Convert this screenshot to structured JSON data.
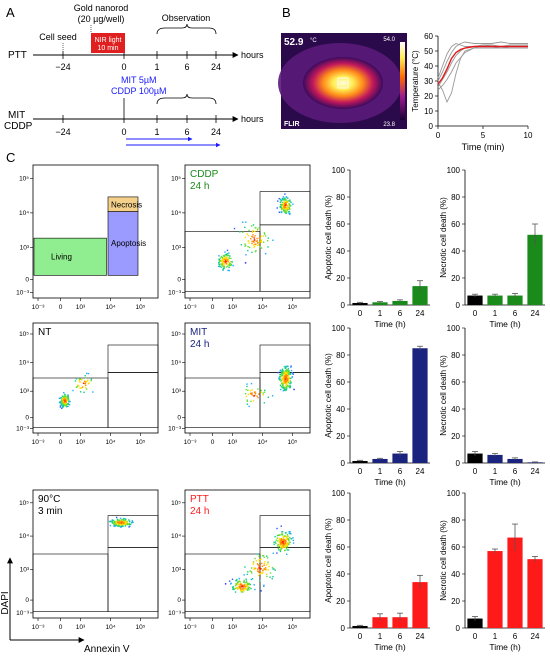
{
  "panel_labels": {
    "a": "A",
    "b": "B",
    "c": "C"
  },
  "timeline": {
    "gold_line1": "Gold nanorod",
    "gold_line2": "(20 µg/well)",
    "cell_seed": "Cell seed",
    "observation": "Observation",
    "ptt_label": "PTT",
    "nir_line1": "NIR light",
    "nir_line2": "10 min",
    "hours": "hours",
    "ticks": [
      "−24",
      "0",
      "1",
      "6",
      "24"
    ],
    "mit_dose": "MIT 5µM",
    "cddp_dose": "CDDP 100µM",
    "mit_label": "MIT",
    "cddp_label": "CDDP"
  },
  "thermal": {
    "temp_readout": "52.9",
    "unit": "°C",
    "scale_max": "54.0",
    "scale_min": "23.8",
    "brand": "FLIR",
    "colors": {
      "hot": "#ffff66",
      "mid": "#ff6a00",
      "cool": "#7b1fa2",
      "cold": "#1a0033"
    }
  },
  "chart_data": [
    {
      "type": "line",
      "title": "",
      "xlabel": "Time (min)",
      "ylabel": "Temperature (°C)",
      "xlim": [
        0,
        10
      ],
      "ylim": [
        0,
        60
      ],
      "xticks": [
        "0",
        "5",
        "10"
      ],
      "yticks": [
        "0",
        "10",
        "20",
        "30",
        "40",
        "50",
        "60"
      ],
      "series": [
        {
          "color": "#e41a1c",
          "x": [
            0,
            0.5,
            1,
            1.5,
            2,
            2.5,
            3,
            3.5,
            4,
            5,
            6,
            7,
            8,
            9,
            10
          ],
          "y": [
            28,
            32,
            38,
            45,
            49,
            51,
            52,
            52.5,
            53,
            53,
            53,
            53,
            53,
            53,
            53
          ]
        },
        {
          "color": "#999999",
          "x": [
            0,
            0.5,
            1,
            1.5,
            2,
            2.5,
            3,
            4,
            5,
            6,
            7,
            8,
            9,
            10
          ],
          "y": [
            26,
            31,
            36,
            42,
            47,
            50,
            52,
            53,
            53,
            53,
            52,
            53,
            53,
            53
          ]
        },
        {
          "color": "#999999",
          "x": [
            0,
            0.5,
            1,
            1.5,
            2,
            2.5,
            3,
            4,
            5,
            6,
            7,
            8,
            9,
            10
          ],
          "y": [
            30,
            36,
            43,
            49,
            53,
            55,
            56,
            55,
            55,
            55,
            56,
            55,
            55,
            55
          ]
        },
        {
          "color": "#999999",
          "x": [
            0,
            0.5,
            1,
            1.5,
            2,
            3,
            4,
            5,
            6,
            7,
            8,
            9,
            10
          ],
          "y": [
            24,
            27,
            31,
            36,
            42,
            49,
            52,
            54,
            54,
            53,
            54,
            54,
            54
          ]
        },
        {
          "color": "#999999",
          "x": [
            0,
            0.5,
            1,
            1.5,
            2,
            2.5,
            3,
            4,
            5,
            6,
            7,
            8,
            9,
            10
          ],
          "y": [
            32,
            40,
            48,
            53,
            55,
            54,
            53,
            53,
            54,
            53,
            53,
            53,
            53,
            53
          ]
        },
        {
          "color": "#999999",
          "x": [
            0,
            0.5,
            1,
            1.5,
            2,
            2.5,
            3,
            4,
            5,
            6,
            7,
            8,
            9,
            10
          ],
          "y": [
            29,
            24,
            16,
            22,
            35,
            45,
            50,
            52,
            52,
            52,
            52,
            52,
            52,
            52
          ]
        }
      ]
    },
    {
      "type": "scatter",
      "cell_label": [
        "",
        ""
      ],
      "gates": [
        "Living",
        "Apoptosis",
        "Necrosis"
      ],
      "xticks": [
        "10⁻³",
        "0",
        "10³",
        "10⁴",
        "10⁵"
      ],
      "yticks": [
        "10⁻³",
        "0",
        "10³",
        "10⁴",
        "10⁵"
      ]
    },
    {
      "type": "scatter",
      "cell_label": [
        "CDDP",
        "24 h"
      ],
      "label_color": "#1a8a1a",
      "xticks": [
        "10⁻³",
        "0",
        "10³",
        "10⁴",
        "10⁵"
      ],
      "yticks": [
        "10⁻³",
        "0",
        "10³",
        "10⁴",
        "10⁵"
      ]
    },
    {
      "type": "bar",
      "categories": [
        "0",
        "1",
        "6",
        "24"
      ],
      "values": [
        1.5,
        2,
        3,
        14
      ],
      "errors": [
        0.5,
        0.5,
        0.8,
        4
      ],
      "ylim": [
        0,
        100
      ],
      "yticks": [
        "0",
        "20",
        "40",
        "60",
        "80",
        "100"
      ],
      "ylabel": "Apoptotic cell death (%)",
      "xlabel": "Time (h)",
      "color": "#1a8a1a"
    },
    {
      "type": "bar",
      "categories": [
        "0",
        "1",
        "6",
        "24"
      ],
      "values": [
        7,
        7,
        7,
        52
      ],
      "errors": [
        1,
        1,
        1.5,
        8
      ],
      "ylim": [
        0,
        100
      ],
      "yticks": [
        "0",
        "20",
        "40",
        "60",
        "80",
        "100"
      ],
      "ylabel": "Necrotic cell death (%)",
      "xlabel": "Time (h)",
      "color": "#1a8a1a"
    },
    {
      "type": "scatter",
      "cell_label": [
        "NT",
        ""
      ],
      "label_color": "#000000",
      "xticks": [
        "10⁻³",
        "0",
        "10³",
        "10⁴",
        "10⁵"
      ],
      "yticks": [
        "10⁻³",
        "0",
        "10³",
        "10⁴",
        "10⁵"
      ]
    },
    {
      "type": "scatter",
      "cell_label": [
        "MIT",
        "24 h"
      ],
      "label_color": "#1a237e",
      "xticks": [
        "10⁻³",
        "0",
        "10³",
        "10⁴",
        "10⁵"
      ],
      "yticks": [
        "10⁻³",
        "0",
        "10³",
        "10⁴",
        "10⁵"
      ]
    },
    {
      "type": "bar",
      "categories": [
        "0",
        "1",
        "6",
        "24"
      ],
      "values": [
        1.5,
        3,
        7,
        85
      ],
      "errors": [
        0.5,
        0.5,
        1.5,
        1.5
      ],
      "ylim": [
        0,
        100
      ],
      "yticks": [
        "0",
        "20",
        "40",
        "60",
        "80",
        "100"
      ],
      "ylabel": "Apoptotic cell death (%)",
      "xlabel": "Time (h)",
      "color": "#1a237e"
    },
    {
      "type": "bar",
      "categories": [
        "0",
        "1",
        "6",
        "24"
      ],
      "values": [
        7,
        6,
        3,
        0.5
      ],
      "errors": [
        1.5,
        1,
        0.8,
        0.3
      ],
      "ylim": [
        0,
        100
      ],
      "yticks": [
        "0",
        "20",
        "40",
        "60",
        "80",
        "100"
      ],
      "ylabel": "Necrotic cell death (%)",
      "xlabel": "Time (h)",
      "color": "#1a237e"
    },
    {
      "type": "scatter",
      "cell_label": [
        "90°C",
        "3 min"
      ],
      "label_color": "#000000",
      "xticks": [
        "10⁻³",
        "0",
        "10³",
        "10⁴",
        "10⁵"
      ],
      "yticks": [
        "10⁻³",
        "0",
        "10³",
        "10⁴",
        "10⁵"
      ]
    },
    {
      "type": "scatter",
      "cell_label": [
        "PTT",
        "24 h"
      ],
      "label_color": "#ff1a1a",
      "xticks": [
        "10⁻³",
        "0",
        "10³",
        "10⁴",
        "10⁵"
      ],
      "yticks": [
        "10⁻³",
        "0",
        "10³",
        "10⁴",
        "10⁵"
      ]
    },
    {
      "type": "bar",
      "categories": [
        "0",
        "1",
        "6",
        "24"
      ],
      "values": [
        1.5,
        8,
        8,
        34
      ],
      "errors": [
        0.5,
        2.5,
        3,
        5
      ],
      "ylim": [
        0,
        100
      ],
      "yticks": [
        "0",
        "20",
        "40",
        "60",
        "80",
        "100"
      ],
      "ylabel": "Apoptotic cell death (%)",
      "xlabel": "Time (h)",
      "color": "#ff1a1a"
    },
    {
      "type": "bar",
      "categories": [
        "0",
        "1",
        "6",
        "24"
      ],
      "values": [
        7,
        57,
        67,
        51
      ],
      "errors": [
        1.5,
        1.5,
        10,
        2
      ],
      "ylim": [
        0,
        100
      ],
      "yticks": [
        "0",
        "20",
        "40",
        "60",
        "80",
        "100"
      ],
      "ylabel": "Necrotic cell death (%)",
      "xlabel": "Time (h)",
      "color": "#ff1a1a"
    }
  ],
  "axis_labels": {
    "dapi": "DAPI",
    "annexin": "Annexin V"
  }
}
